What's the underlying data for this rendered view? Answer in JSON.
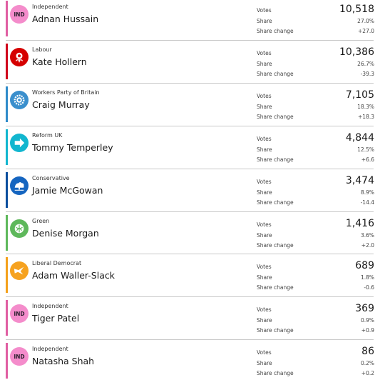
{
  "labels": {
    "votes": "Votes",
    "share": "Share",
    "change": "Share change"
  },
  "candidates": [
    {
      "party": "Independent",
      "name": "Adnan Hussain",
      "logo": "IND",
      "icon": "independent-icon",
      "color": "#e05ea2",
      "logo_bg": "#f48ccb",
      "votes": "10,518",
      "share": "27.0%",
      "change": "+27.0"
    },
    {
      "party": "Labour",
      "name": "Kate Hollern",
      "logo": "",
      "icon": "labour-rose-icon",
      "color": "#d0021b",
      "logo_bg": "#d50000",
      "votes": "10,386",
      "share": "26.7%",
      "change": "-39.3"
    },
    {
      "party": "Workers Party of Britain",
      "name": "Craig Murray",
      "logo": "",
      "icon": "workers-party-cog-icon",
      "color": "#2f8bc9",
      "logo_bg": "#3a8fcd",
      "votes": "7,105",
      "share": "18.3%",
      "change": "+18.3"
    },
    {
      "party": "Reform UK",
      "name": "Tommy Temperley",
      "logo": "",
      "icon": "reform-arrow-icon",
      "color": "#12b6cf",
      "logo_bg": "#12b6cf",
      "votes": "4,844",
      "share": "12.5%",
      "change": "+6.6"
    },
    {
      "party": "Conservative",
      "name": "Jamie McGowan",
      "logo": "",
      "icon": "conservative-tree-icon",
      "color": "#0c4f9e",
      "logo_bg": "#1565c0",
      "votes": "3,474",
      "share": "8.9%",
      "change": "-14.4"
    },
    {
      "party": "Green",
      "name": "Denise Morgan",
      "logo": "",
      "icon": "green-globe-icon",
      "color": "#5eb85b",
      "logo_bg": "#5eb85b",
      "votes": "1,416",
      "share": "3.6%",
      "change": "+2.0"
    },
    {
      "party": "Liberal Democrat",
      "name": "Adam Waller-Slack",
      "logo": "",
      "icon": "libdem-bird-icon",
      "color": "#f4a11b",
      "logo_bg": "#f6a21f",
      "votes": "689",
      "share": "1.8%",
      "change": "-0.6"
    },
    {
      "party": "Independent",
      "name": "Tiger Patel",
      "logo": "IND",
      "icon": "independent-icon",
      "color": "#e05ea2",
      "logo_bg": "#f48ccb",
      "votes": "369",
      "share": "0.9%",
      "change": "+0.9"
    },
    {
      "party": "Independent",
      "name": "Natasha Shah",
      "logo": "IND",
      "icon": "independent-icon",
      "color": "#e05ea2",
      "logo_bg": "#f48ccb",
      "votes": "86",
      "share": "0.2%",
      "change": "+0.2"
    }
  ]
}
